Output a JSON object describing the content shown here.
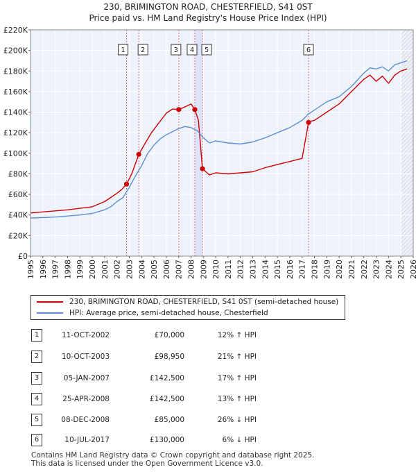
{
  "title_line1": "230, BRIMINGTON ROAD, CHESTERFIELD, S41 0ST",
  "title_line2": "Price paid vs. HM Land Registry's House Price Index (HPI)",
  "chart_data": {
    "type": "line",
    "title": "230, BRIMINGTON ROAD, CHESTERFIELD, S41 0ST — Price paid vs. HM Land Registry's House Price Index (HPI)",
    "xlabel": "",
    "ylabel": "",
    "xlim": [
      1995,
      2026
    ],
    "ylim": [
      0,
      220000
    ],
    "y_ticks": [
      0,
      20000,
      40000,
      60000,
      80000,
      100000,
      120000,
      140000,
      160000,
      180000,
      200000,
      220000
    ],
    "y_tick_labels": [
      "£0",
      "£20K",
      "£40K",
      "£60K",
      "£80K",
      "£100K",
      "£120K",
      "£140K",
      "£160K",
      "£180K",
      "£200K",
      "£220K"
    ],
    "x_ticks": [
      1995,
      1996,
      1997,
      1998,
      1999,
      2000,
      2001,
      2002,
      2003,
      2004,
      2005,
      2006,
      2007,
      2008,
      2009,
      2010,
      2011,
      2012,
      2013,
      2014,
      2015,
      2016,
      2017,
      2018,
      2019,
      2020,
      2021,
      2022,
      2023,
      2024,
      2025,
      2026
    ],
    "grid": true,
    "series": [
      {
        "name": "230, BRIMINGTON ROAD, CHESTERFIELD, S41 0ST (semi-detached house)",
        "color": "#cc0000",
        "x": [
          1995.0,
          1996.0,
          1997.0,
          1998.0,
          1999.0,
          2000.0,
          2001.0,
          2001.5,
          2002.0,
          2002.4,
          2002.78,
          2003.2,
          2003.77,
          2004.3,
          2004.8,
          2005.3,
          2006.0,
          2006.5,
          2007.01,
          2007.5,
          2008.0,
          2008.31,
          2008.6,
          2008.93,
          2009.2,
          2009.5,
          2010.0,
          2011.0,
          2012.0,
          2013.0,
          2014.0,
          2015.0,
          2016.0,
          2017.0,
          2017.52,
          2017.6,
          2018.0,
          2019.0,
          2020.0,
          2021.0,
          2022.0,
          2022.5,
          2023.0,
          2023.5,
          2024.0,
          2024.5,
          2025.0,
          2025.5
        ],
        "y": [
          42000,
          43000,
          44000,
          45000,
          46500,
          48000,
          53000,
          57000,
          61000,
          65000,
          70000,
          80000,
          98950,
          110000,
          120000,
          128000,
          139000,
          143000,
          142500,
          145000,
          148000,
          142500,
          132000,
          85000,
          82000,
          79000,
          81000,
          80000,
          81000,
          82000,
          86000,
          89000,
          92000,
          95000,
          130000,
          131000,
          132000,
          140000,
          148000,
          160000,
          172000,
          176000,
          170000,
          175000,
          168000,
          176000,
          180000,
          182000
        ]
      },
      {
        "name": "HPI: Average price, semi-detached house, Chesterfield",
        "color": "#5b8ed1",
        "x": [
          1995.0,
          1996.0,
          1997.0,
          1998.0,
          1999.0,
          2000.0,
          2001.0,
          2001.5,
          2002.0,
          2002.5,
          2003.0,
          2003.5,
          2004.0,
          2004.5,
          2005.0,
          2005.5,
          2006.0,
          2006.5,
          2007.0,
          2007.5,
          2008.0,
          2008.5,
          2009.0,
          2009.5,
          2010.0,
          2011.0,
          2012.0,
          2013.0,
          2014.0,
          2015.0,
          2016.0,
          2017.0,
          2017.5,
          2018.0,
          2019.0,
          2020.0,
          2021.0,
          2022.0,
          2022.5,
          2023.0,
          2023.5,
          2024.0,
          2024.5,
          2025.0,
          2025.5
        ],
        "y": [
          37000,
          37500,
          38000,
          39000,
          40000,
          41500,
          45000,
          48000,
          53000,
          57000,
          67000,
          78000,
          88000,
          100000,
          108000,
          114000,
          118000,
          121000,
          124000,
          126000,
          125000,
          122000,
          115000,
          110000,
          112000,
          110000,
          109000,
          111000,
          115000,
          120000,
          125000,
          132000,
          138000,
          142000,
          150000,
          155000,
          165000,
          178000,
          183000,
          182000,
          184000,
          180000,
          186000,
          188000,
          190000
        ]
      }
    ],
    "shaded_range": [
      2008.31,
      2008.93
    ],
    "sale_markers": [
      {
        "label": "1",
        "x": 2002.78,
        "y": 70000
      },
      {
        "label": "2",
        "x": 2003.77,
        "y": 98950
      },
      {
        "label": "3",
        "x": 2007.01,
        "y": 142500
      },
      {
        "label": "4",
        "x": 2008.31,
        "y": 142500
      },
      {
        "label": "5",
        "x": 2008.93,
        "y": 85000
      },
      {
        "label": "6",
        "x": 2017.52,
        "y": 130000
      }
    ],
    "hatch_from": 2025.0
  },
  "legend": {
    "price_paid_label": "230, BRIMINGTON ROAD, CHESTERFIELD, S41 0ST (semi-detached house)",
    "hpi_label": "HPI: Average price, semi-detached house, Chesterfield",
    "price_paid_color": "#cc0000",
    "hpi_color": "#5b8ed1"
  },
  "transactions": [
    {
      "num": "1",
      "date": "11-OCT-2002",
      "price": "£70,000",
      "hpi": "12% ↑ HPI"
    },
    {
      "num": "2",
      "date": "10-OCT-2003",
      "price": "£98,950",
      "hpi": "21% ↑ HPI"
    },
    {
      "num": "3",
      "date": "05-JAN-2007",
      "price": "£142,500",
      "hpi": "17% ↑ HPI"
    },
    {
      "num": "4",
      "date": "25-APR-2008",
      "price": "£142,500",
      "hpi": "13% ↑ HPI"
    },
    {
      "num": "5",
      "date": "08-DEC-2008",
      "price": "£85,000",
      "hpi": "26% ↓ HPI"
    },
    {
      "num": "6",
      "date": "10-JUL-2017",
      "price": "£130,000",
      "hpi": "6% ↓ HPI"
    }
  ],
  "footer": {
    "line1": "Contains HM Land Registry data © Crown copyright and database right 2025.",
    "line2": "This data is licensed under the Open Government Licence v3.0."
  }
}
